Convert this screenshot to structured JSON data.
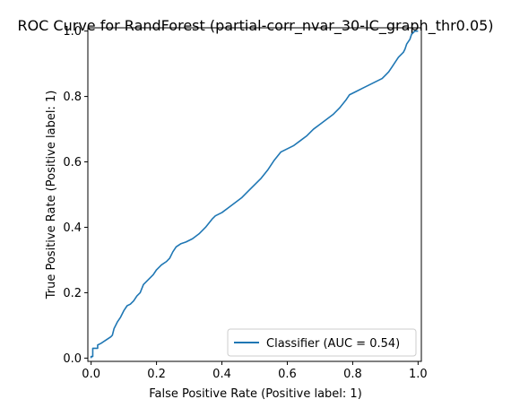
{
  "chart_data": {
    "type": "line",
    "title": "ROC Curve for RandForest (partial-corr_nvar_30-IC_graph_thr0.05)",
    "xlabel": "False Positive Rate (Positive label: 1)",
    "ylabel": "True Positive Rate (Positive label: 1)",
    "xlim": [
      -0.01,
      1.01
    ],
    "ylim": [
      -0.01,
      1.01
    ],
    "xticks": [
      0.0,
      0.2,
      0.4,
      0.6,
      0.8,
      1.0
    ],
    "xtick_labels": [
      "0.0",
      "0.2",
      "0.4",
      "0.6",
      "0.8",
      "1.0"
    ],
    "yticks": [
      0.0,
      0.2,
      0.4,
      0.6,
      0.8,
      1.0
    ],
    "ytick_labels": [
      "0.0",
      "0.2",
      "0.4",
      "0.6",
      "0.8",
      "1.0"
    ],
    "grid": false,
    "legend_position": "lower-right",
    "series": [
      {
        "name": "Classifier (AUC = 0.54)",
        "color": "#1f77b4",
        "points": [
          [
            0.0,
            0.0
          ],
          [
            0.0,
            0.005
          ],
          [
            0.005,
            0.005
          ],
          [
            0.005,
            0.03
          ],
          [
            0.02,
            0.03
          ],
          [
            0.02,
            0.04
          ],
          [
            0.03,
            0.045
          ],
          [
            0.045,
            0.055
          ],
          [
            0.06,
            0.065
          ],
          [
            0.065,
            0.07
          ],
          [
            0.07,
            0.09
          ],
          [
            0.08,
            0.11
          ],
          [
            0.09,
            0.125
          ],
          [
            0.1,
            0.145
          ],
          [
            0.11,
            0.16
          ],
          [
            0.12,
            0.165
          ],
          [
            0.13,
            0.175
          ],
          [
            0.14,
            0.19
          ],
          [
            0.15,
            0.2
          ],
          [
            0.16,
            0.225
          ],
          [
            0.175,
            0.24
          ],
          [
            0.19,
            0.255
          ],
          [
            0.2,
            0.27
          ],
          [
            0.215,
            0.285
          ],
          [
            0.23,
            0.295
          ],
          [
            0.24,
            0.305
          ],
          [
            0.25,
            0.325
          ],
          [
            0.26,
            0.34
          ],
          [
            0.275,
            0.35
          ],
          [
            0.29,
            0.355
          ],
          [
            0.31,
            0.365
          ],
          [
            0.33,
            0.38
          ],
          [
            0.35,
            0.4
          ],
          [
            0.37,
            0.425
          ],
          [
            0.38,
            0.435
          ],
          [
            0.4,
            0.445
          ],
          [
            0.42,
            0.46
          ],
          [
            0.44,
            0.475
          ],
          [
            0.46,
            0.49
          ],
          [
            0.48,
            0.51
          ],
          [
            0.5,
            0.53
          ],
          [
            0.52,
            0.55
          ],
          [
            0.54,
            0.575
          ],
          [
            0.56,
            0.605
          ],
          [
            0.58,
            0.63
          ],
          [
            0.6,
            0.64
          ],
          [
            0.62,
            0.65
          ],
          [
            0.64,
            0.665
          ],
          [
            0.66,
            0.68
          ],
          [
            0.68,
            0.7
          ],
          [
            0.7,
            0.715
          ],
          [
            0.72,
            0.73
          ],
          [
            0.74,
            0.745
          ],
          [
            0.76,
            0.765
          ],
          [
            0.78,
            0.79
          ],
          [
            0.79,
            0.805
          ],
          [
            0.81,
            0.815
          ],
          [
            0.83,
            0.825
          ],
          [
            0.85,
            0.835
          ],
          [
            0.87,
            0.845
          ],
          [
            0.89,
            0.855
          ],
          [
            0.9,
            0.865
          ],
          [
            0.91,
            0.875
          ],
          [
            0.92,
            0.89
          ],
          [
            0.93,
            0.905
          ],
          [
            0.94,
            0.92
          ],
          [
            0.955,
            0.935
          ],
          [
            0.96,
            0.945
          ],
          [
            0.965,
            0.96
          ],
          [
            0.975,
            0.975
          ],
          [
            0.98,
            0.99
          ],
          [
            0.99,
            1.0
          ],
          [
            1.0,
            1.0
          ]
        ]
      }
    ]
  }
}
